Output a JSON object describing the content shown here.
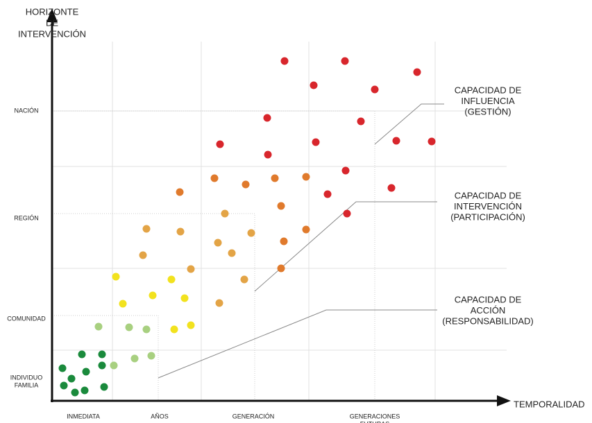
{
  "y_axis": {
    "title_lines": [
      "HORIZONTE",
      "DE",
      "INTERVENCIÓN"
    ],
    "levels": [
      [
        "NACIÓN"
      ],
      [
        "REGIÓN"
      ],
      [
        "COMUNIDAD"
      ],
      [
        "INDIVIDUO",
        "FAMILIA"
      ]
    ]
  },
  "x_axis": {
    "title": "TEMPORALIDAD",
    "levels": [
      [
        "INMEDIATA"
      ],
      [
        "AÑOS"
      ],
      [
        "GENERACIÓN"
      ],
      [
        "GENERACIONES",
        "FUTURAS"
      ]
    ]
  },
  "annotations": [
    {
      "lines": [
        "CAPACIDAD DE",
        "INFLUENCIA",
        "(GESTIÓN)"
      ]
    },
    {
      "lines": [
        "CAPACIDAD DE",
        "INTERVENCIÓN",
        "(PARTICIPACIÓN)"
      ]
    },
    {
      "lines": [
        "CAPACIDAD DE",
        "ACCIÓN",
        "(RESPONSABILIDAD)"
      ]
    }
  ]
}
